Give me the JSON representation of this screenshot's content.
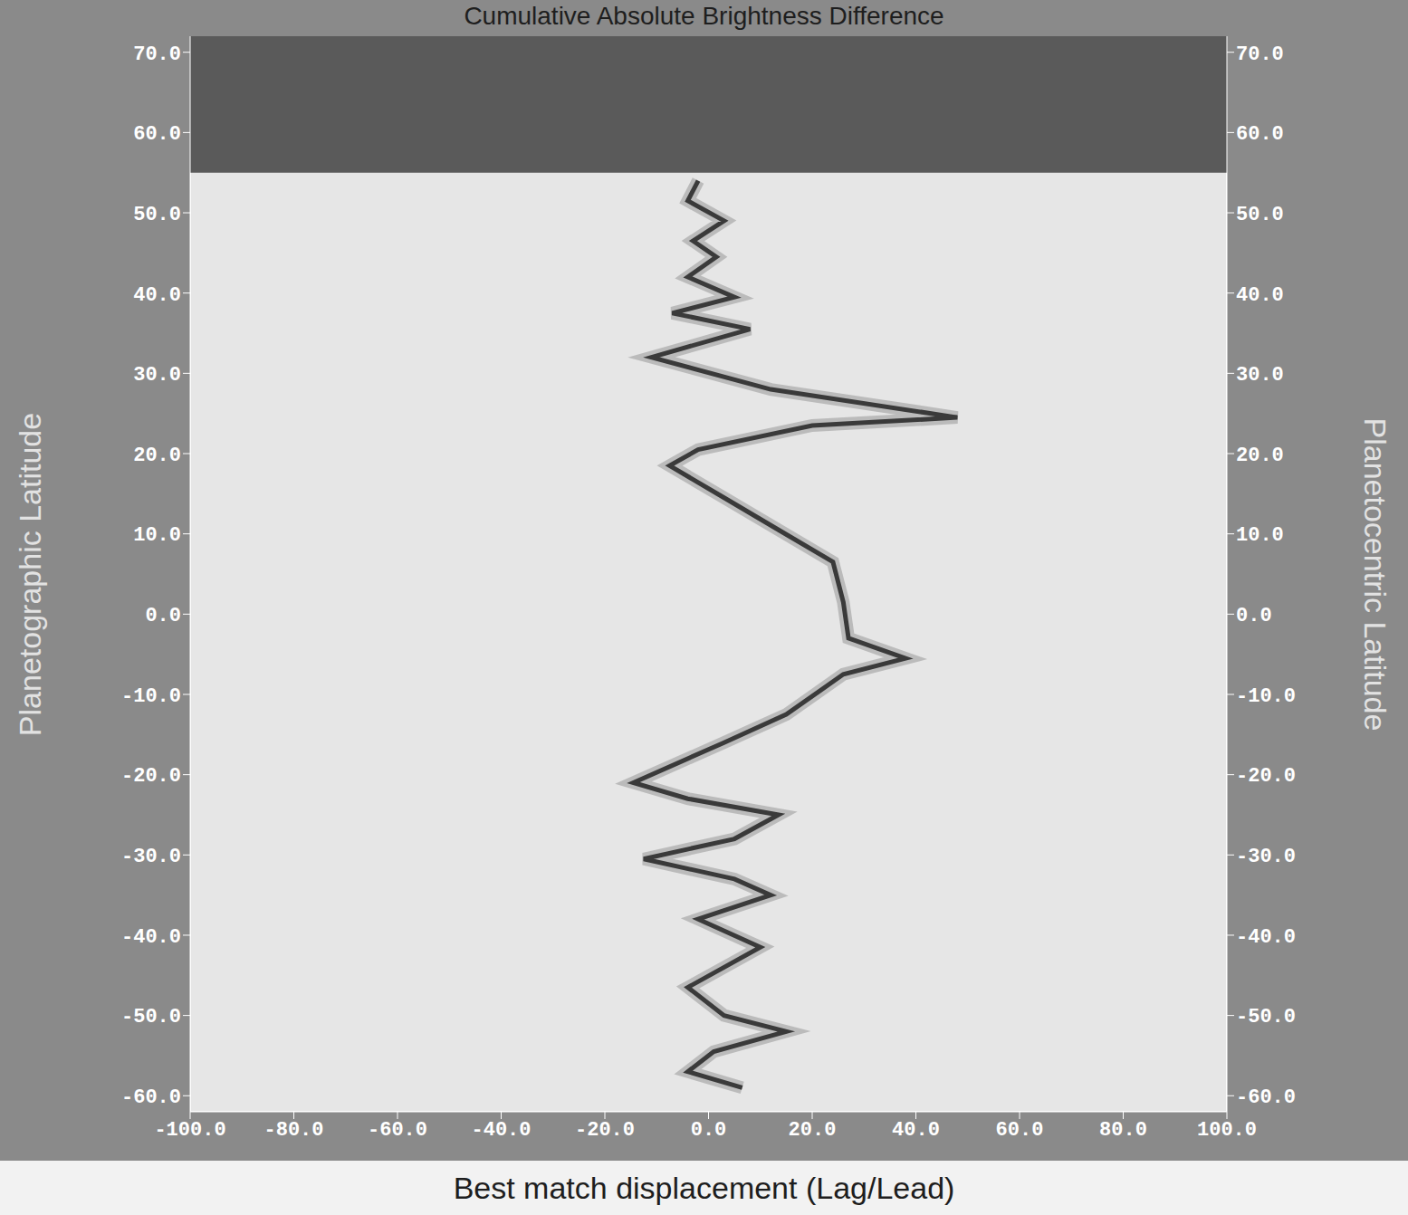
{
  "chart_data": {
    "type": "line",
    "title": "Cumulative Absolute Brightness Difference",
    "x_label": "Best match displacement (Lag/Lead)",
    "y_label": "Planetographic Latitude",
    "y2_label": "Planetocentric Latitude",
    "xlim": [
      -100,
      100
    ],
    "xticks": [
      {
        "value": -100,
        "label": "-100.0"
      },
      {
        "value": -80,
        "label": "-80.0"
      },
      {
        "value": -60,
        "label": "-60.0"
      },
      {
        "value": -40,
        "label": "-40.0"
      },
      {
        "value": -20,
        "label": "-20.0"
      },
      {
        "value": 0,
        "label": "0.0"
      },
      {
        "value": 20,
        "label": "20.0"
      },
      {
        "value": 40,
        "label": "40.0"
      },
      {
        "value": 60,
        "label": "60.0"
      },
      {
        "value": 80,
        "label": "80.0"
      },
      {
        "value": 100,
        "label": "100.0"
      }
    ],
    "ylim": [
      -62,
      72
    ],
    "yticks": [
      {
        "value": -60,
        "label": "-60.0"
      },
      {
        "value": -50,
        "label": "-50.0"
      },
      {
        "value": -40,
        "label": "-40.0"
      },
      {
        "value": -30,
        "label": "-30.0"
      },
      {
        "value": -20,
        "label": "-20.0"
      },
      {
        "value": -10,
        "label": "-10.0"
      },
      {
        "value": 0,
        "label": "0.0"
      },
      {
        "value": 10,
        "label": "10.0"
      },
      {
        "value": 20,
        "label": "20.0"
      },
      {
        "value": 30,
        "label": "30.0"
      },
      {
        "value": 40,
        "label": "40.0"
      },
      {
        "value": 50,
        "label": "50.0"
      },
      {
        "value": 60,
        "label": "60.0"
      },
      {
        "value": 70,
        "label": "70.0"
      }
    ],
    "y2lim": [
      -62,
      72
    ],
    "y2ticks": [
      {
        "value": -60,
        "label": "-60.0"
      },
      {
        "value": -50,
        "label": "-50.0"
      },
      {
        "value": -40,
        "label": "-40.0"
      },
      {
        "value": -30,
        "label": "-30.0"
      },
      {
        "value": -20,
        "label": "-20.0"
      },
      {
        "value": -10,
        "label": "-10.0"
      },
      {
        "value": 0,
        "label": "0.0"
      },
      {
        "value": 10,
        "label": "10.0"
      },
      {
        "value": 20,
        "label": "20.0"
      },
      {
        "value": 30,
        "label": "30.0"
      },
      {
        "value": 40,
        "label": "40.0"
      },
      {
        "value": 50,
        "label": "50.0"
      },
      {
        "value": 60,
        "label": "60.0"
      },
      {
        "value": 70,
        "label": "70.0"
      }
    ],
    "masked_range": [
      55,
      72
    ],
    "grid": false,
    "series": [
      {
        "color": "#3a3a3a",
        "x": [
          -2,
          -4,
          3,
          -3,
          1.5,
          -4,
          5,
          -7,
          8,
          -11,
          12,
          48,
          20,
          -2,
          -7.5,
          3,
          13.5,
          24,
          26,
          27,
          38,
          26,
          15,
          3,
          -14.5,
          -4,
          13.5,
          5,
          -12.5,
          5,
          12,
          -2,
          10,
          -4,
          3,
          15,
          1,
          -4,
          6.5
        ],
        "y": [
          54,
          51.5,
          49,
          46.5,
          44.5,
          42,
          39.5,
          37.5,
          35.5,
          32,
          28,
          24.5,
          23.5,
          20.5,
          18.5,
          14.5,
          10.5,
          6.5,
          1.5,
          -3,
          -5.5,
          -7.5,
          -12.5,
          -16,
          -21,
          -23,
          -25,
          -28,
          -30.5,
          -33,
          -35,
          -38,
          -41.5,
          -46.5,
          -50,
          -52,
          -54.5,
          -57,
          -59
        ]
      }
    ]
  }
}
